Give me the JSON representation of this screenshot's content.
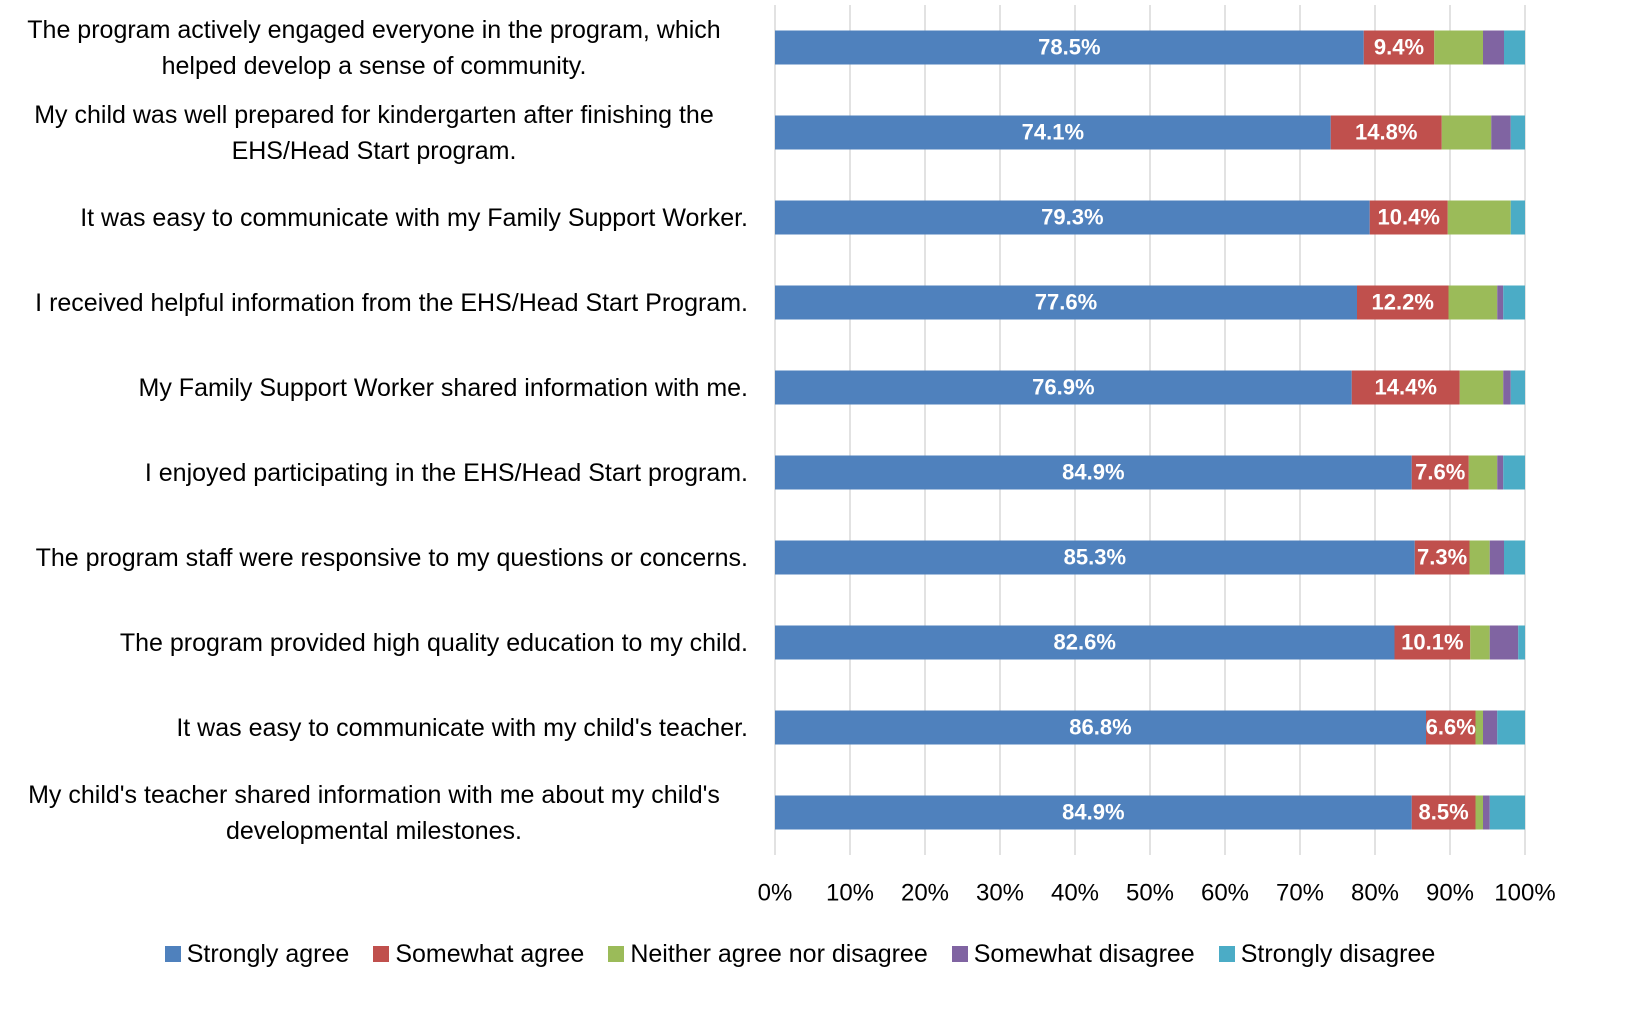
{
  "chart_data": {
    "type": "stacked_barh",
    "categories": [
      "The program actively engaged everyone in the program, which helped develop a sense of community.",
      "My child was well prepared for kindergarten after finishing the EHS/Head Start program.",
      "It was easy to communicate with my Family Support Worker.",
      "I received helpful information from the EHS/Head Start Program.",
      "My Family Support Worker shared information with me.",
      "I enjoyed participating in the EHS/Head Start program.",
      "The program staff were responsive to my questions or concerns.",
      "The program provided high quality education to my child.",
      "It was easy to communicate with my child's teacher.",
      "My child's teacher shared information with me about my child's developmental milestones."
    ],
    "series": [
      {
        "name": "Strongly agree",
        "color": "#4f81bd",
        "values": [
          78.5,
          74.1,
          79.3,
          77.6,
          76.9,
          84.9,
          85.3,
          82.6,
          86.8,
          84.9
        ],
        "value_labels": [
          "78.5%",
          "74.1%",
          "79.3%",
          "77.6%",
          "76.9%",
          "84.9%",
          "85.3%",
          "82.6%",
          "86.8%",
          "84.9%"
        ]
      },
      {
        "name": "Somewhat agree",
        "color": "#c0504d",
        "values": [
          9.4,
          14.8,
          10.4,
          12.2,
          14.4,
          7.6,
          7.3,
          10.1,
          6.6,
          8.5
        ],
        "value_labels": [
          "9.4%",
          "14.8%",
          "10.4%",
          "12.2%",
          "14.4%",
          "7.6%",
          "7.3%",
          "10.1%",
          "6.6%",
          "8.5%"
        ]
      },
      {
        "name": "Neither agree nor disagree",
        "color": "#9bbb59",
        "values": [
          6.5,
          6.6,
          8.4,
          6.5,
          5.8,
          3.8,
          2.7,
          2.6,
          1.0,
          1.0
        ]
      },
      {
        "name": "Somewhat disagree",
        "color": "#8064a2",
        "values": [
          2.8,
          2.6,
          0,
          0.8,
          1.0,
          0.8,
          1.9,
          3.8,
          1.9,
          0.9
        ]
      },
      {
        "name": "Strongly disagree",
        "color": "#4bacc6",
        "values": [
          2.8,
          1.9,
          1.9,
          2.9,
          1.9,
          2.9,
          2.8,
          0.9,
          3.7,
          4.7
        ]
      }
    ],
    "xlim": [
      0,
      100
    ],
    "xticks": [
      {
        "value": 0,
        "label": "0%"
      },
      {
        "value": 10,
        "label": "10%"
      },
      {
        "value": 20,
        "label": "20%"
      },
      {
        "value": 30,
        "label": "30%"
      },
      {
        "value": 40,
        "label": "40%"
      },
      {
        "value": 50,
        "label": "50%"
      },
      {
        "value": 60,
        "label": "60%"
      },
      {
        "value": 70,
        "label": "70%"
      },
      {
        "value": 80,
        "label": "80%"
      },
      {
        "value": 90,
        "label": "90%"
      },
      {
        "value": 100,
        "label": "100%"
      }
    ],
    "grid": true,
    "legend": "bottom"
  }
}
